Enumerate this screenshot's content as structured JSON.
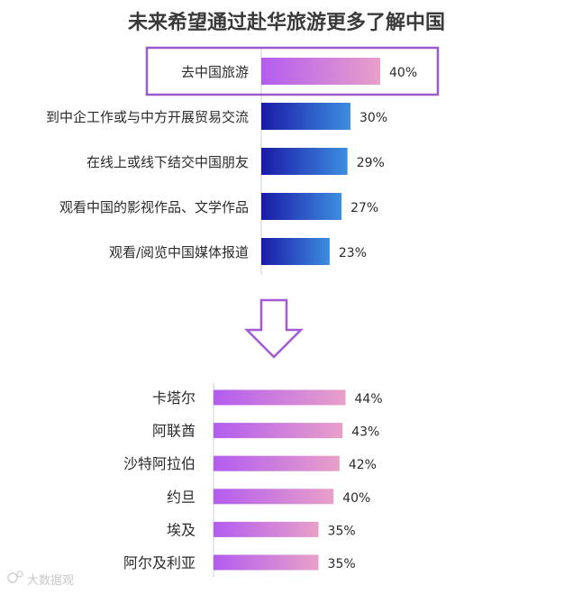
{
  "chart_data": [
    {
      "type": "bar",
      "orientation": "horizontal",
      "title": "未来希望通过赴华旅游更多了解中国",
      "categories": [
        "去中国旅游",
        "到中企工作或与中方开展贸易交流",
        "在线上或线下结交中国朋友",
        "观看中国的影视作品、文学作品",
        "观看/阅览中国媒体报道"
      ],
      "values": [
        40,
        30,
        29,
        27,
        23
      ],
      "value_labels": [
        "40%",
        "30%",
        "29%",
        "27%",
        "23%"
      ],
      "highlighted_category": "去中国旅游",
      "unit": "%",
      "xlim": [
        0,
        100
      ],
      "grid": false,
      "legend": "none"
    },
    {
      "type": "bar",
      "orientation": "horizontal",
      "categories": [
        "卡塔尔",
        "阿联酋",
        "沙特阿拉伯",
        "约旦",
        "埃及",
        "阿尔及利亚"
      ],
      "values": [
        44,
        43,
        42,
        40,
        35,
        35
      ],
      "value_labels": [
        "44%",
        "43%",
        "42%",
        "40%",
        "35%",
        "35%"
      ],
      "unit": "%",
      "xlim": [
        0,
        100
      ],
      "grid": false,
      "legend": "none"
    }
  ],
  "colors": {
    "title": "#3a3a3a",
    "highlight_border": "#9b59d0",
    "purple_gradient": [
      "#b35cf0",
      "#e8a0c8"
    ],
    "blue_gradient": [
      "#1a1aa8",
      "#3d8ee0"
    ],
    "arrow_stroke": "#a35ad8",
    "axis_line": "#cfcfcf",
    "text": "#2b2b2b"
  },
  "icons": [
    "down-arrow-icon",
    "watermark-logo"
  ],
  "watermark": "大数据观"
}
